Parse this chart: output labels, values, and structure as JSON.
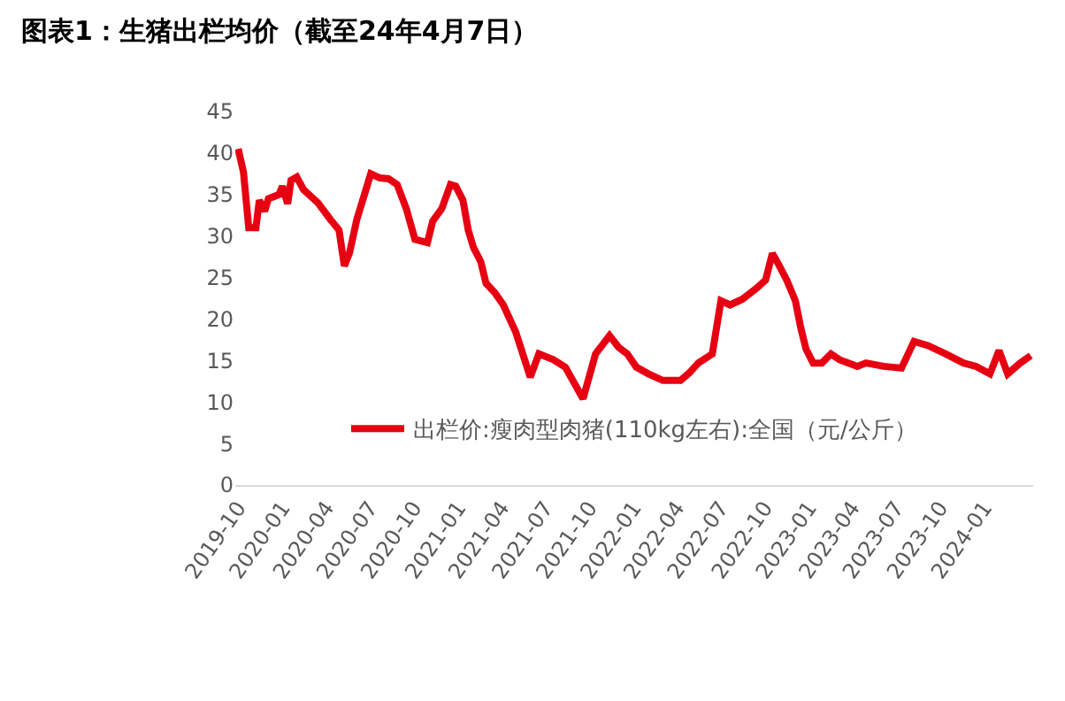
{
  "chart_data": {
    "type": "line",
    "title": "图表1：生猪出栏均价（截至24年4月7日）",
    "x": [
      "2019-10-01",
      "2019-10-12",
      "2019-10-23",
      "2019-11-07",
      "2019-11-14",
      "2019-11-25",
      "2019-12-03",
      "2019-12-25",
      "2020-01-01",
      "2020-01-12",
      "2020-01-19",
      "2020-01-31",
      "2020-02-14",
      "2020-03-15",
      "2020-04-10",
      "2020-04-28",
      "2020-05-09",
      "2020-05-20",
      "2020-06-04",
      "2020-06-22",
      "2020-07-03",
      "2020-07-22",
      "2020-08-09",
      "2020-08-27",
      "2020-09-15",
      "2020-10-03",
      "2020-10-29",
      "2020-11-09",
      "2020-11-28",
      "2020-12-16",
      "2020-12-27",
      "2021-01-11",
      "2021-01-22",
      "2021-02-02",
      "2021-02-17",
      "2021-02-28",
      "2021-03-18",
      "2021-04-05",
      "2021-05-01",
      "2021-05-31",
      "2021-06-18",
      "2021-07-18",
      "2021-08-12",
      "2021-09-18",
      "2021-10-14",
      "2021-11-12",
      "2021-12-01",
      "2021-12-19",
      "2022-01-07",
      "2022-02-01",
      "2022-03-03",
      "2022-04-09",
      "2022-04-27",
      "2022-05-16",
      "2022-06-14",
      "2022-07-02",
      "2022-07-21",
      "2022-08-16",
      "2022-09-14",
      "2022-10-03",
      "2022-10-17",
      "2022-10-28",
      "2022-11-16",
      "2022-12-04",
      "2022-12-15",
      "2022-12-26",
      "2023-01-10",
      "2023-01-28",
      "2023-02-16",
      "2023-03-06",
      "2023-04-12",
      "2023-04-30",
      "2023-06-06",
      "2023-07-13",
      "2023-08-08",
      "2023-09-06",
      "2023-10-13",
      "2023-11-19",
      "2023-12-15",
      "2024-01-13",
      "2024-02-01",
      "2024-02-19",
      "2024-03-16",
      "2024-04-07"
    ],
    "series": [
      {
        "name": "出栏价:瘦肉型肉猪(110kg左右):全国（元/公斤）",
        "color": "#e60012",
        "values": [
          40.5,
          37.7,
          31,
          31,
          34.3,
          33,
          34.5,
          35,
          36,
          33.9,
          36.7,
          37.1,
          35.6,
          34,
          32,
          30.7,
          26.4,
          28,
          32,
          35.4,
          37.5,
          37,
          36.9,
          36.2,
          33.3,
          29.6,
          29.2,
          31.8,
          33.3,
          36.2,
          36,
          34.3,
          30.7,
          28.6,
          26.9,
          24.3,
          23.2,
          21.7,
          18.4,
          13,
          15.8,
          15.1,
          14.2,
          10.4,
          15.8,
          18,
          16.6,
          15.8,
          14.2,
          13.4,
          12.6,
          12.6,
          13.5,
          14.7,
          15.8,
          22.2,
          21.7,
          22.4,
          23.7,
          24.7,
          27.9,
          26.8,
          24.7,
          22.2,
          19,
          16.4,
          14.7,
          14.7,
          15.8,
          15.1,
          14.3,
          14.7,
          14.3,
          14.1,
          17.3,
          16.8,
          15.8,
          14.7,
          14.3,
          13.4,
          16.2,
          13.4,
          14.7,
          15.6
        ]
      }
    ],
    "xlim": [
      "2019-09-25",
      "2024-04-12"
    ],
    "xticks": [
      {
        "value": "2019-10-01",
        "label": "2019-10"
      },
      {
        "value": "2020-01-01",
        "label": "2020-01"
      },
      {
        "value": "2020-04-01",
        "label": "2020-04"
      },
      {
        "value": "2020-07-01",
        "label": "2020-07"
      },
      {
        "value": "2020-10-01",
        "label": "2020-10"
      },
      {
        "value": "2021-01-01",
        "label": "2021-01"
      },
      {
        "value": "2021-04-01",
        "label": "2021-04"
      },
      {
        "value": "2021-07-01",
        "label": "2021-07"
      },
      {
        "value": "2021-10-01",
        "label": "2021-10"
      },
      {
        "value": "2022-01-01",
        "label": "2022-01"
      },
      {
        "value": "2022-04-01",
        "label": "2022-04"
      },
      {
        "value": "2022-07-01",
        "label": "2022-07"
      },
      {
        "value": "2022-10-01",
        "label": "2022-10"
      },
      {
        "value": "2023-01-01",
        "label": "2023-01"
      },
      {
        "value": "2023-04-01",
        "label": "2023-04"
      },
      {
        "value": "2023-07-01",
        "label": "2023-07"
      },
      {
        "value": "2023-10-01",
        "label": "2023-10"
      },
      {
        "value": "2024-01-01",
        "label": "2024-01"
      }
    ],
    "ylim": [
      0,
      45
    ],
    "yticks": [
      0,
      5,
      10,
      15,
      20,
      25,
      30,
      35,
      40,
      45
    ],
    "grid": false,
    "legend": "bottom",
    "marker": "none",
    "line_style": "solid"
  }
}
